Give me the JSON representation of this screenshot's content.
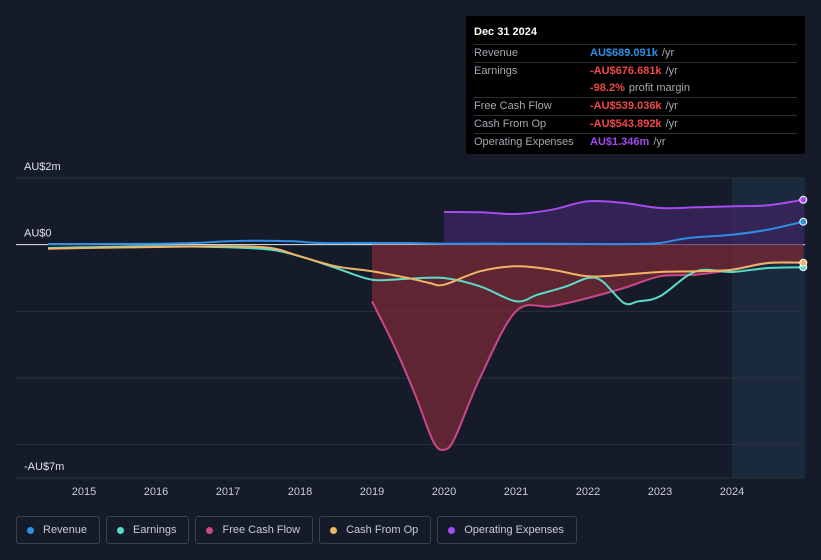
{
  "tooltip": {
    "date": "Dec 31 2024",
    "rows": [
      {
        "label": "Revenue",
        "value": "AU$689.091k",
        "unit": "/yr",
        "color": "#2f8fe6"
      },
      {
        "label": "Earnings",
        "value": "-AU$676.681k",
        "unit": "/yr",
        "color": "#f04848"
      },
      {
        "label": "",
        "value": "-98.2%",
        "unit": "profit margin",
        "color": "#f04848"
      },
      {
        "label": "Free Cash Flow",
        "value": "-AU$539.036k",
        "unit": "/yr",
        "color": "#f04848"
      },
      {
        "label": "Cash From Op",
        "value": "-AU$543.892k",
        "unit": "/yr",
        "color": "#f04848"
      },
      {
        "label": "Operating Expenses",
        "value": "AU$1.346m",
        "unit": "/yr",
        "color": "#a54bf0"
      }
    ]
  },
  "chart_data": {
    "type": "line",
    "title": "",
    "ylabel": "",
    "xlabel": "",
    "ylim": [
      -7,
      2
    ],
    "y_tick_labels": [
      {
        "value": 2,
        "label": "AU$2m"
      },
      {
        "value": 0,
        "label": "AU$0"
      },
      {
        "value": -7,
        "label": "-AU$7m"
      }
    ],
    "x_tick_labels": [
      "2015",
      "2016",
      "2017",
      "2018",
      "2019",
      "2020",
      "2021",
      "2022",
      "2023",
      "2024"
    ],
    "forecast_shading_start": 2024.0,
    "series": [
      {
        "name": "Revenue",
        "color": "#2f8fe6",
        "x": [
          2014.5,
          2015.0,
          2016.0,
          2016.5,
          2017.0,
          2017.4,
          2017.9,
          2018.3,
          2019.0,
          2019.5,
          2020.0,
          2021.0,
          2022.0,
          2022.7,
          2023.0,
          2023.4,
          2024.0,
          2024.5,
          2024.99
        ],
        "values": [
          0.02,
          0.02,
          0.03,
          0.05,
          0.1,
          0.12,
          0.1,
          0.05,
          0.05,
          0.05,
          0.03,
          0.03,
          0.02,
          0.02,
          0.05,
          0.2,
          0.3,
          0.45,
          0.689
        ]
      },
      {
        "name": "Earnings",
        "color": "#59dcc7",
        "x": [
          2014.5,
          2015.0,
          2016.0,
          2017.0,
          2017.6,
          2018.0,
          2018.5,
          2019.0,
          2019.5,
          2020.0,
          2020.5,
          2021.0,
          2021.3,
          2021.7,
          2022.0,
          2022.2,
          2022.5,
          2022.7,
          2023.0,
          2023.5,
          2024.0,
          2024.5,
          2024.99
        ],
        "values": [
          -0.1,
          -0.08,
          -0.05,
          -0.08,
          -0.15,
          -0.35,
          -0.7,
          -1.05,
          -1.02,
          -1.0,
          -1.25,
          -1.7,
          -1.5,
          -1.25,
          -1.0,
          -1.1,
          -1.75,
          -1.7,
          -1.55,
          -0.8,
          -0.82,
          -0.7,
          -0.677
        ]
      },
      {
        "name": "Free Cash Flow",
        "color": "#c8498a",
        "x": [
          2019.0,
          2019.3,
          2019.6,
          2019.85,
          2020.0,
          2020.15,
          2020.5,
          2021.0,
          2021.5,
          2022.0,
          2022.5,
          2023.0,
          2023.5,
          2024.0,
          2024.5,
          2024.99
        ],
        "values": [
          -1.7,
          -3.0,
          -4.5,
          -5.9,
          -6.15,
          -5.8,
          -4.0,
          -2.0,
          -1.85,
          -1.6,
          -1.3,
          -0.95,
          -0.9,
          -0.75,
          -0.55,
          -0.539
        ]
      },
      {
        "name": "Cash From Op",
        "color": "#efb467",
        "x": [
          2014.5,
          2015.0,
          2016.0,
          2017.0,
          2017.6,
          2018.0,
          2018.5,
          2019.0,
          2019.5,
          2019.8,
          2020.0,
          2020.5,
          2021.0,
          2021.5,
          2022.0,
          2022.5,
          2023.0,
          2023.5,
          2024.0,
          2024.5,
          2024.99
        ],
        "values": [
          -0.12,
          -0.1,
          -0.07,
          -0.05,
          -0.1,
          -0.35,
          -0.65,
          -0.8,
          -1.0,
          -1.15,
          -1.2,
          -0.8,
          -0.65,
          -0.75,
          -0.95,
          -0.9,
          -0.82,
          -0.8,
          -0.75,
          -0.55,
          -0.544
        ]
      },
      {
        "name": "Operating Expenses",
        "color": "#a54bf0",
        "x": [
          2020.0,
          2020.5,
          2021.0,
          2021.5,
          2022.0,
          2022.5,
          2023.0,
          2023.5,
          2024.0,
          2024.5,
          2024.99
        ],
        "values": [
          0.98,
          0.97,
          0.92,
          1.05,
          1.3,
          1.25,
          1.1,
          1.12,
          1.15,
          1.18,
          1.346
        ]
      }
    ]
  },
  "legend": [
    {
      "label": "Revenue",
      "color": "#2f8fe6"
    },
    {
      "label": "Earnings",
      "color": "#59dcc7"
    },
    {
      "label": "Free Cash Flow",
      "color": "#c8498a"
    },
    {
      "label": "Cash From Op",
      "color": "#efb467"
    },
    {
      "label": "Operating Expenses",
      "color": "#a54bf0"
    }
  ]
}
